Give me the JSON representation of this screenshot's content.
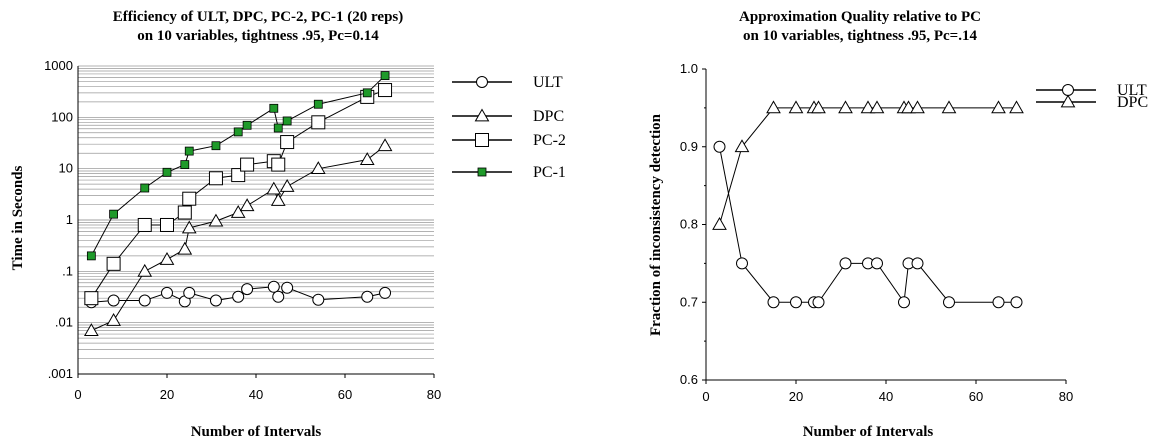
{
  "chart_data": [
    {
      "type": "line",
      "title": "Efficiency of ULT, DPC, PC-2, PC-1 (20 reps)",
      "subtitle": "on 10 variables,  tightness .95,  Pc=0.14",
      "xlabel": "Number of Intervals",
      "ylabel": "Time in Seconds",
      "xlim": [
        0,
        80
      ],
      "ylim": [
        0.001,
        1000
      ],
      "yscale": "log",
      "xticks": [
        "0",
        "20",
        "40",
        "60",
        "80"
      ],
      "yticks": [
        ".001",
        ".01",
        ".1",
        "1",
        "10",
        "100",
        "1000"
      ],
      "grid": "horizontal minor log gridlines",
      "legend_position": "right",
      "series": [
        {
          "name": "ULT",
          "marker": "circle",
          "x": [
            3,
            8,
            15,
            20,
            24,
            25,
            31,
            36,
            38,
            44,
            45,
            47,
            54,
            65,
            69
          ],
          "values": [
            0.025,
            0.027,
            0.027,
            0.038,
            0.026,
            0.038,
            0.027,
            0.032,
            0.045,
            0.05,
            0.032,
            0.048,
            0.028,
            0.032,
            0.038
          ]
        },
        {
          "name": "DPC",
          "marker": "triangle",
          "x": [
            3,
            8,
            15,
            20,
            24,
            25,
            31,
            36,
            38,
            44,
            45,
            47,
            54,
            65,
            69
          ],
          "values": [
            0.007,
            0.011,
            0.1,
            0.17,
            0.27,
            0.7,
            0.95,
            1.4,
            1.9,
            4,
            2.4,
            4.5,
            10,
            15,
            28
          ]
        },
        {
          "name": "PC-2",
          "marker": "square",
          "x": [
            3,
            8,
            15,
            20,
            24,
            25,
            31,
            36,
            38,
            44,
            45,
            47,
            54,
            65,
            69
          ],
          "values": [
            0.03,
            0.14,
            0.8,
            0.8,
            1.4,
            2.6,
            6.5,
            7.5,
            12,
            14,
            12,
            33,
            80,
            250,
            340
          ]
        },
        {
          "name": "PC-1",
          "marker": "filled-square",
          "color": "#1f9a2a",
          "x": [
            3,
            8,
            15,
            20,
            24,
            25,
            31,
            36,
            38,
            44,
            45,
            47,
            54,
            65,
            69
          ],
          "values": [
            0.2,
            1.3,
            4.2,
            8.5,
            12,
            22,
            28,
            52,
            70,
            150,
            62,
            85,
            180,
            300,
            650
          ]
        }
      ]
    },
    {
      "type": "line",
      "title": "Approximation Quality relative to PC",
      "subtitle": "on 10 variables,  tightness .95,  Pc=.14",
      "xlabel": "Number of Intervals",
      "ylabel": "Fraction of inconsistency detection",
      "xlim": [
        0,
        80
      ],
      "ylim": [
        0.6,
        1.0
      ],
      "xticks": [
        "0",
        "20",
        "40",
        "60",
        "80"
      ],
      "yticks": [
        "0.6",
        "0.7",
        "0.8",
        "0.9",
        "1.0"
      ],
      "grid": "none",
      "legend_position": "top-right",
      "series": [
        {
          "name": "ULT",
          "marker": "circle",
          "x": [
            3,
            8,
            15,
            20,
            24,
            25,
            31,
            36,
            38,
            44,
            45,
            47,
            54,
            65,
            69
          ],
          "values": [
            0.9,
            0.75,
            0.7,
            0.7,
            0.7,
            0.7,
            0.75,
            0.75,
            0.75,
            0.7,
            0.75,
            0.75,
            0.7,
            0.7,
            0.7
          ]
        },
        {
          "name": "DPC",
          "marker": "triangle",
          "x": [
            3,
            8,
            15,
            20,
            24,
            25,
            31,
            36,
            38,
            44,
            45,
            47,
            54,
            65,
            69
          ],
          "values": [
            0.8,
            0.9,
            0.95,
            0.95,
            0.95,
            0.95,
            0.95,
            0.95,
            0.95,
            0.95,
            0.95,
            0.95,
            0.95,
            0.95,
            0.95
          ]
        }
      ]
    }
  ]
}
